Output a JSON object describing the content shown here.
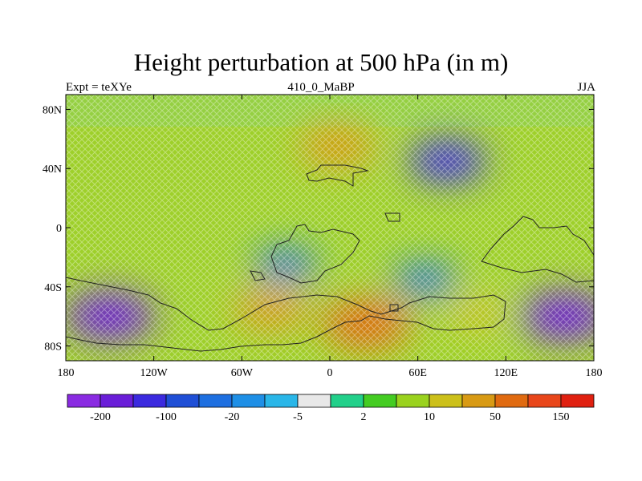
{
  "title": "Height perturbation at 500 hPa (in m)",
  "subtitle_left": "Expt = teXYe",
  "subtitle_center": "410_0_MaBP",
  "subtitle_right": "JJA",
  "map": {
    "lat_labels": [
      "80N",
      "40N",
      "0",
      "40S",
      "80S"
    ],
    "lat_values": [
      80,
      40,
      0,
      -40,
      -80
    ],
    "lon_labels": [
      "180",
      "120W",
      "60W",
      "0",
      "60E",
      "120E",
      "180"
    ],
    "lon_values": [
      -180,
      -120,
      -60,
      0,
      60,
      120,
      180
    ],
    "lon_range": [
      -180,
      180
    ],
    "lat_range": [
      -90,
      90
    ],
    "field_anomalies": [
      {
        "lon": 5,
        "lat": 55,
        "value": 90
      },
      {
        "lon": 80,
        "lat": 45,
        "value": -100
      },
      {
        "lon": -150,
        "lat": -60,
        "value": -150
      },
      {
        "lon": 160,
        "lat": -60,
        "value": -150
      },
      {
        "lon": 25,
        "lat": -65,
        "value": 130
      },
      {
        "lon": -40,
        "lat": -55,
        "value": 70
      },
      {
        "lon": 100,
        "lat": -58,
        "value": 40
      },
      {
        "lon": 65,
        "lat": -35,
        "value": -40
      },
      {
        "lon": -30,
        "lat": -25,
        "value": -25
      }
    ]
  },
  "colorbar": {
    "colors": [
      "#8a2be2",
      "#6a1ed8",
      "#3b2adf",
      "#1f4fd6",
      "#1e6fe0",
      "#1e8fe6",
      "#29b6e8",
      "#e8e8e8",
      "#22d08a",
      "#44cc22",
      "#9ad21e",
      "#ccc01a",
      "#d89a14",
      "#e06a10",
      "#e8461a",
      "#e02010"
    ],
    "labels": [
      "-200",
      "-100",
      "-20",
      "-5",
      "2",
      "10",
      "50",
      "150"
    ],
    "label_after_box": [
      0,
      2,
      4,
      6,
      8,
      10,
      12,
      14
    ]
  }
}
